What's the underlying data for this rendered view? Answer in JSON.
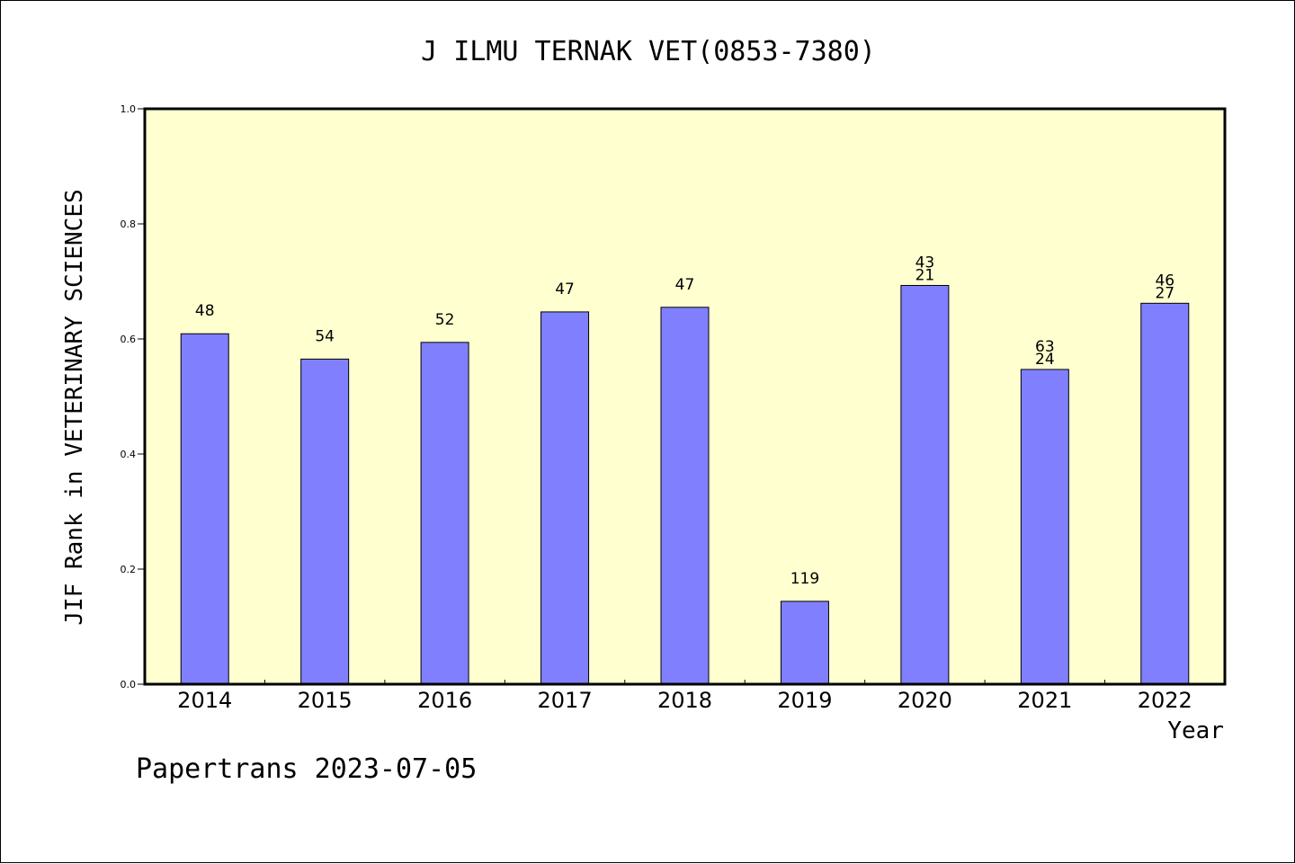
{
  "chart_data": {
    "type": "bar",
    "title": "J ILMU TERNAK VET(0853-7380)",
    "ylabel": "JIF Rank in VETERINARY SCIENCES",
    "xlabel": "Year",
    "footer": "Papertrans 2023-07-05",
    "ylim": [
      0,
      1.0
    ],
    "yticks": [
      "0.0",
      "0.2",
      "0.4",
      "0.6",
      "0.8",
      "1.0"
    ],
    "grid": false,
    "colors": {
      "plot_bg": "#ffffd0",
      "bar": "#8080ff",
      "bar_stroke": "#000000",
      "text": "#000000"
    },
    "categories": [
      "2014",
      "2015",
      "2016",
      "2017",
      "2018",
      "2019",
      "2020",
      "2021",
      "2022"
    ],
    "values": [
      0.609,
      0.565,
      0.594,
      0.647,
      0.655,
      0.144,
      0.693,
      0.547,
      0.662
    ],
    "labels": [
      [
        "48"
      ],
      [
        "54"
      ],
      [
        "52"
      ],
      [
        "47"
      ],
      [
        "47"
      ],
      [
        "119"
      ],
      [
        "43",
        "21"
      ],
      [
        "63",
        "24"
      ],
      [
        "46",
        "27"
      ]
    ]
  }
}
